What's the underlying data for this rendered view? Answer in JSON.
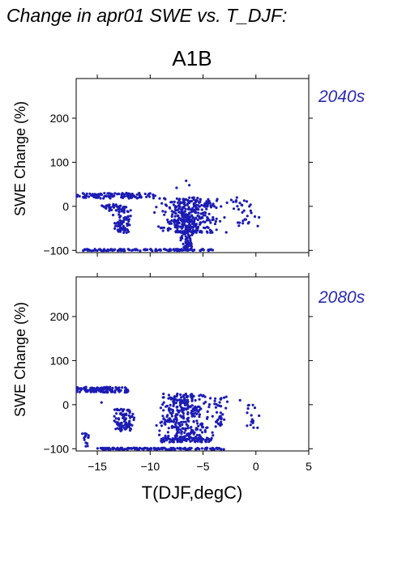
{
  "figure": {
    "title": "Change in apr01 SWE vs. T_DJF:",
    "scenario": "A1B",
    "xlabel": "T(DJF,degC)",
    "ylabel": "SWE Change (%)",
    "point_color": "#1c1cb4",
    "label_color": "#2a2ab0"
  },
  "chart_data": [
    {
      "type": "scatter",
      "panel": "2040s",
      "xlabel": "T(DJF,degC)",
      "ylabel": "SWE Change (%)",
      "xlim": [
        -17,
        5
      ],
      "ylim": [
        -105,
        290
      ],
      "xticks": [
        -15,
        -10,
        -5,
        0,
        5
      ],
      "yticks": [
        -100,
        0,
        100,
        200
      ],
      "clusters": [
        {
          "kind": "band",
          "x": [
            -17,
            -9.5
          ],
          "y": [
            18,
            30
          ],
          "n": 110
        },
        {
          "kind": "band",
          "x": [
            -16.5,
            -4
          ],
          "y": [
            -101,
            -97
          ],
          "n": 130
        },
        {
          "kind": "cloud",
          "x": [
            -10,
            -2.5
          ],
          "y": [
            -60,
            20
          ],
          "n": 330
        },
        {
          "kind": "cloud",
          "x": [
            -7.5,
            -5.5
          ],
          "y": [
            -100,
            -20
          ],
          "n": 110
        },
        {
          "kind": "cloud",
          "x": [
            -14,
            -11.5
          ],
          "y": [
            -60,
            0
          ],
          "n": 80
        },
        {
          "kind": "cloud",
          "x": [
            -15.5,
            -12
          ],
          "y": [
            -10,
            5
          ],
          "n": 30
        },
        {
          "kind": "cloud",
          "x": [
            -3.5,
            0.5
          ],
          "y": [
            -45,
            15
          ],
          "n": 30
        }
      ],
      "points": [
        [
          -6.6,
          58
        ],
        [
          -6.3,
          48
        ],
        [
          -7.5,
          42
        ],
        [
          -0.5,
          -10
        ],
        [
          0.3,
          -25
        ],
        [
          -1.8,
          20
        ]
      ]
    },
    {
      "type": "scatter",
      "panel": "2080s",
      "xlabel": "T(DJF,degC)",
      "ylabel": "SWE Change (%)",
      "xlim": [
        -17,
        5
      ],
      "ylim": [
        -105,
        290
      ],
      "xticks": [
        -15,
        -10,
        -5,
        0,
        5
      ],
      "yticks": [
        -100,
        0,
        100,
        200
      ],
      "clusters": [
        {
          "kind": "band",
          "x": [
            -17,
            -12
          ],
          "y": [
            28,
            40
          ],
          "n": 110
        },
        {
          "kind": "band",
          "x": [
            -15,
            -3
          ],
          "y": [
            -102,
            -98
          ],
          "n": 140
        },
        {
          "kind": "cloud",
          "x": [
            -10,
            -3.5
          ],
          "y": [
            -85,
            25
          ],
          "n": 330
        },
        {
          "kind": "band",
          "x": [
            -9,
            -4
          ],
          "y": [
            -85,
            -75
          ],
          "n": 70
        },
        {
          "kind": "cloud",
          "x": [
            -14,
            -11
          ],
          "y": [
            -60,
            -10
          ],
          "n": 90
        },
        {
          "kind": "cloud",
          "x": [
            -16.5,
            -15.5
          ],
          "y": [
            -95,
            -65
          ],
          "n": 15
        },
        {
          "kind": "cloud",
          "x": [
            -4.5,
            -2.5
          ],
          "y": [
            -50,
            20
          ],
          "n": 40
        },
        {
          "kind": "cloud",
          "x": [
            -1.5,
            0.5
          ],
          "y": [
            -55,
            0
          ],
          "n": 15
        }
      ],
      "points": [
        [
          -14.6,
          5
        ],
        [
          -13.2,
          -20
        ],
        [
          -2.8,
          18
        ],
        [
          -1.5,
          10
        ],
        [
          0.3,
          -25
        ]
      ]
    }
  ]
}
